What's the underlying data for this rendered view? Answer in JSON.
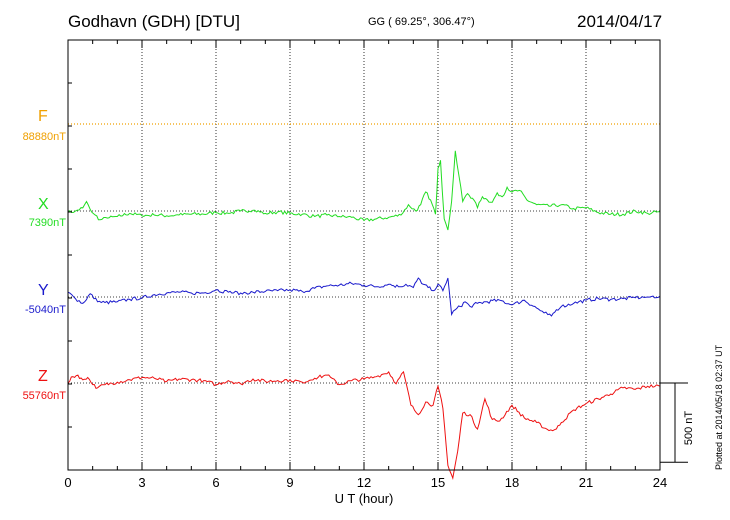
{
  "header": {
    "station": "Godhavn (GDH)  [DTU]",
    "coords": "GG ( 69.25°, 306.47°)",
    "date": "2014/04/17"
  },
  "credit": "Plotted at 2014/05/18 02:37 UT",
  "components": [
    {
      "key": "F",
      "label": "F",
      "baseline": "88880nT",
      "color": "#f0a000"
    },
    {
      "key": "X",
      "label": "X",
      "baseline": "7390nT",
      "color": "#22dd22"
    },
    {
      "key": "Y",
      "label": "Y",
      "baseline": "-5040nT",
      "color": "#1a1acc"
    },
    {
      "key": "Z",
      "label": "Z",
      "baseline": "55760nT",
      "color": "#ee1111"
    }
  ],
  "scale_bar": {
    "label": "500 nT",
    "value_nT": 500
  },
  "chart_data": {
    "type": "line",
    "xlabel": "U T (hour)",
    "xlim": [
      0,
      24
    ],
    "xticks": [
      0,
      3,
      6,
      9,
      12,
      15,
      18,
      21,
      24
    ],
    "grid": true,
    "y_units": "nT (deviation from baseline)",
    "series": [
      {
        "name": "F",
        "baseline_nT": 88880,
        "x": [
          0,
          24
        ],
        "values": [
          0,
          0
        ]
      },
      {
        "name": "X",
        "baseline_nT": 7390,
        "x": [
          0,
          0.3,
          0.6,
          0.75,
          0.9,
          1.1,
          1.3,
          1.6,
          2.0,
          2.5,
          3.0,
          3.5,
          4.0,
          4.5,
          5.0,
          5.5,
          6.0,
          6.5,
          7.0,
          7.5,
          8.0,
          8.5,
          9.0,
          9.5,
          10.0,
          10.5,
          11.0,
          11.5,
          12.0,
          12.5,
          13.0,
          13.5,
          13.8,
          14.1,
          14.3,
          14.5,
          14.7,
          14.9,
          15.0,
          15.1,
          15.25,
          15.4,
          15.55,
          15.7,
          15.85,
          16.0,
          16.2,
          16.4,
          16.6,
          16.8,
          17.0,
          17.2,
          17.4,
          17.6,
          17.8,
          18.0,
          18.3,
          18.6,
          19.0,
          19.5,
          20.0,
          20.5,
          21.0,
          21.5,
          22.0,
          22.5,
          23.0,
          23.5,
          24.0
        ],
        "values": [
          -10,
          0,
          20,
          60,
          10,
          -25,
          -55,
          -45,
          -35,
          -15,
          -30,
          -25,
          -30,
          -25,
          -20,
          -20,
          -10,
          -15,
          0,
          5,
          -15,
          -5,
          -15,
          -20,
          -35,
          -25,
          -35,
          -40,
          -60,
          -50,
          -40,
          -25,
          40,
          0,
          40,
          120,
          70,
          -20,
          270,
          320,
          -50,
          -120,
          60,
          380,
          220,
          60,
          110,
          80,
          20,
          90,
          70,
          55,
          115,
          90,
          150,
          120,
          130,
          70,
          40,
          30,
          40,
          15,
          20,
          -10,
          -20,
          -20,
          0,
          -15,
          -5
        ]
      },
      {
        "name": "Y",
        "baseline_nT": -5040,
        "x": [
          0,
          0.3,
          0.6,
          0.9,
          1.2,
          1.5,
          2.0,
          2.5,
          3.0,
          3.5,
          4.0,
          4.5,
          5.0,
          5.5,
          6.0,
          6.5,
          7.0,
          7.5,
          8.0,
          8.5,
          9.0,
          9.5,
          10.0,
          10.5,
          11.0,
          11.5,
          12.0,
          12.5,
          13.0,
          13.4,
          13.7,
          14.0,
          14.2,
          14.4,
          14.6,
          14.8,
          15.0,
          15.2,
          15.4,
          15.55,
          15.7,
          15.9,
          16.1,
          16.3,
          16.6,
          17.0,
          17.5,
          18.0,
          18.5,
          19.0,
          19.3,
          19.6,
          19.8,
          20.0,
          20.5,
          21.0,
          21.5,
          22.0,
          22.5,
          23.0,
          23.5,
          24.0
        ],
        "values": [
          30,
          -10,
          -40,
          20,
          -30,
          -35,
          -30,
          -15,
          -5,
          15,
          25,
          30,
          25,
          25,
          45,
          30,
          25,
          30,
          35,
          40,
          45,
          35,
          55,
          70,
          75,
          85,
          75,
          65,
          80,
          65,
          80,
          60,
          120,
          80,
          60,
          40,
          80,
          40,
          120,
          -110,
          -80,
          -60,
          -30,
          -60,
          -40,
          -30,
          -20,
          -50,
          -20,
          -70,
          -100,
          -120,
          -80,
          -60,
          -40,
          -20,
          -10,
          -15,
          -10,
          -5,
          0,
          5
        ]
      },
      {
        "name": "Z",
        "baseline_nT": 55760,
        "x": [
          0,
          0.2,
          0.4,
          0.6,
          0.8,
          1.0,
          1.2,
          1.5,
          2.0,
          2.5,
          3.0,
          3.5,
          4.0,
          4.5,
          5.0,
          5.5,
          6.0,
          6.5,
          7.0,
          7.5,
          8.0,
          8.5,
          9.0,
          9.5,
          10.0,
          10.5,
          11.0,
          11.5,
          12.0,
          12.5,
          13.0,
          13.3,
          13.6,
          13.9,
          14.2,
          14.5,
          14.8,
          15.0,
          15.2,
          15.4,
          15.6,
          15.8,
          16.0,
          16.3,
          16.6,
          16.9,
          17.2,
          17.5,
          18.0,
          18.5,
          19.0,
          19.5,
          19.8,
          20.0,
          20.5,
          21.0,
          21.5,
          22.0,
          22.5,
          23.0,
          23.5,
          24.0
        ],
        "values": [
          0,
          40,
          50,
          20,
          35,
          -10,
          -30,
          -10,
          5,
          20,
          35,
          30,
          10,
          25,
          20,
          15,
          -10,
          15,
          -5,
          25,
          10,
          15,
          20,
          5,
          30,
          50,
          -10,
          15,
          25,
          40,
          70,
          -5,
          70,
          -140,
          -200,
          -120,
          -140,
          -20,
          -160,
          -520,
          -600,
          -430,
          -190,
          -200,
          -290,
          -100,
          -230,
          -240,
          -140,
          -220,
          -250,
          -300,
          -290,
          -250,
          -170,
          -130,
          -100,
          -70,
          -30,
          -40,
          -20,
          -20
        ]
      }
    ]
  }
}
